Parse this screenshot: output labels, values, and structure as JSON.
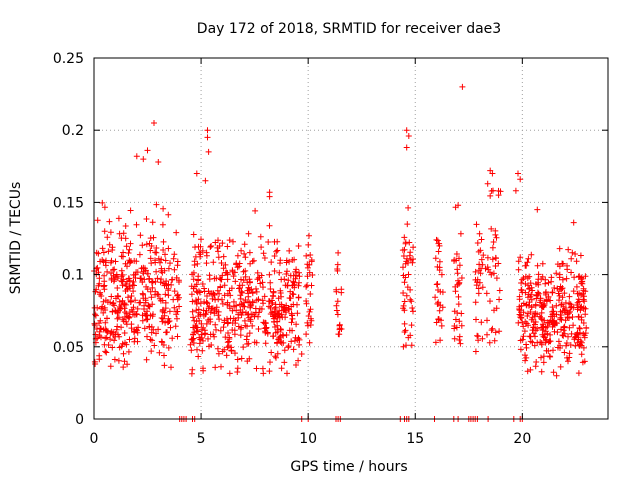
{
  "chart_data": {
    "type": "scatter",
    "title": "Day 172 of 2018, SRMTID for receiver dae3",
    "xlabel": "GPS time / hours",
    "ylabel": "SRMTID / TECUs",
    "xlim": [
      0,
      24
    ],
    "ylim": [
      0,
      0.25
    ],
    "grid": true,
    "marker": "+",
    "color": "#ff0000",
    "x_ticks": [
      {
        "value": 0,
        "label": "0"
      },
      {
        "value": 5,
        "label": "5"
      },
      {
        "value": 10,
        "label": "10"
      },
      {
        "value": 15,
        "label": "15"
      },
      {
        "value": 20,
        "label": "20"
      }
    ],
    "y_ticks": [
      {
        "value": 0,
        "label": "0"
      },
      {
        "value": 0.05,
        "label": "0.05"
      },
      {
        "value": 0.1,
        "label": "0.1"
      },
      {
        "value": 0.15,
        "label": "0.15"
      },
      {
        "value": 0.2,
        "label": "0.2"
      },
      {
        "value": 0.25,
        "label": "0.25"
      }
    ],
    "clusters": [
      {
        "x_range": [
          0.0,
          4.0
        ],
        "y_mean": 0.085,
        "y_spread": 0.025,
        "y_min": 0.035,
        "y_max": 0.15,
        "count": 420
      },
      {
        "x_range": [
          4.5,
          9.6
        ],
        "y_mean": 0.078,
        "y_spread": 0.022,
        "y_min": 0.03,
        "y_max": 0.15,
        "count": 520
      },
      {
        "x_range": [
          9.9,
          10.2
        ],
        "y_mean": 0.09,
        "y_spread": 0.025,
        "y_min": 0.04,
        "y_max": 0.14,
        "count": 28
      },
      {
        "x_range": [
          11.3,
          11.6
        ],
        "y_mean": 0.085,
        "y_spread": 0.018,
        "y_min": 0.055,
        "y_max": 0.115,
        "count": 18
      },
      {
        "x_range": [
          14.4,
          14.9
        ],
        "y_mean": 0.1,
        "y_spread": 0.03,
        "y_min": 0.05,
        "y_max": 0.16,
        "count": 45
      },
      {
        "x_range": [
          15.9,
          16.3
        ],
        "y_mean": 0.085,
        "y_spread": 0.02,
        "y_min": 0.045,
        "y_max": 0.125,
        "count": 32
      },
      {
        "x_range": [
          16.8,
          17.2
        ],
        "y_mean": 0.09,
        "y_spread": 0.025,
        "y_min": 0.05,
        "y_max": 0.15,
        "count": 32
      },
      {
        "x_range": [
          17.8,
          19.0
        ],
        "y_mean": 0.1,
        "y_spread": 0.03,
        "y_min": 0.045,
        "y_max": 0.17,
        "count": 70
      },
      {
        "x_range": [
          19.8,
          23.0
        ],
        "y_mean": 0.075,
        "y_spread": 0.02,
        "y_min": 0.03,
        "y_max": 0.12,
        "count": 360
      }
    ],
    "peaks": [
      {
        "x": 2.8,
        "y": 0.205
      },
      {
        "x": 5.3,
        "y": 0.2
      },
      {
        "x": 5.3,
        "y": 0.195
      },
      {
        "x": 5.35,
        "y": 0.185
      },
      {
        "x": 14.6,
        "y": 0.2
      },
      {
        "x": 14.7,
        "y": 0.196
      },
      {
        "x": 14.6,
        "y": 0.188
      },
      {
        "x": 17.2,
        "y": 0.23
      },
      {
        "x": 2.5,
        "y": 0.186
      },
      {
        "x": 2.0,
        "y": 0.182
      },
      {
        "x": 2.3,
        "y": 0.18
      },
      {
        "x": 3.0,
        "y": 0.178
      },
      {
        "x": 8.2,
        "y": 0.157
      },
      {
        "x": 8.2,
        "y": 0.154
      },
      {
        "x": 18.5,
        "y": 0.172
      },
      {
        "x": 18.6,
        "y": 0.17
      },
      {
        "x": 19.8,
        "y": 0.17
      },
      {
        "x": 19.9,
        "y": 0.166
      },
      {
        "x": 19.7,
        "y": 0.158
      },
      {
        "x": 4.8,
        "y": 0.17
      },
      {
        "x": 5.2,
        "y": 0.165
      },
      {
        "x": 11.4,
        "y": 0.115
      },
      {
        "x": 17.0,
        "y": 0.148
      },
      {
        "x": 20.7,
        "y": 0.145
      },
      {
        "x": 22.4,
        "y": 0.136
      },
      {
        "x": 21.6,
        "y": 0.03
      },
      {
        "x": 9.7,
        "y": 0.045
      }
    ],
    "zero_markers_x": [
      4.0,
      4.1,
      4.2,
      4.3,
      4.6,
      4.7,
      9.7,
      10.0,
      11.3,
      11.4,
      11.5,
      14.3,
      14.5,
      14.6,
      14.7,
      15.9,
      16.8,
      17.0,
      17.5,
      17.6,
      17.7,
      17.8,
      17.9,
      18.4,
      19.6,
      19.9,
      20.0
    ]
  }
}
